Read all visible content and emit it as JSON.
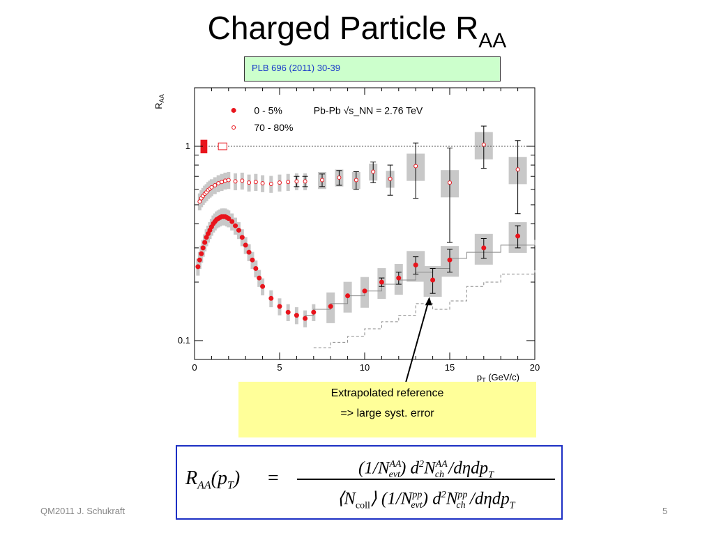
{
  "slide": {
    "title_main": "Charged Particle R",
    "title_sub": "AA",
    "reference": "PLB 696 (2011) 30-39",
    "note_line1": "Extrapolated reference",
    "note_line2": "=> large syst. error",
    "footer_left": "QM2011 J. Schukraft",
    "page_number": "5"
  },
  "formula": {
    "lhs": "R_AA(p_T)",
    "equals": "=",
    "numerator": "(1/N_evt^AA) d²N_ch^AA / dη dp_T",
    "denominator": "⟨N_coll⟩ (1/N_evt^pp) d²N_ch^pp / dη dp_T"
  },
  "colors": {
    "central": "#e8141c",
    "peripheral": "#e8141c",
    "syst_band": "#c8c8c8",
    "formula_border": "#1c2fc4",
    "ref_box": "#ccffcc",
    "note_box": "#ffff99"
  },
  "chart_data": {
    "type": "scatter",
    "ylabel": "R_AA",
    "xlabel": "p_T (GeV/c)",
    "legend_header": "Pb-Pb √s_NN = 2.76 TeV",
    "legend_position": "top-left",
    "xlim": [
      0,
      20
    ],
    "ylim": [
      0.08,
      2.0
    ],
    "y_scale": "log",
    "x_ticks": [
      "0",
      "5",
      "10",
      "15",
      "20"
    ],
    "y_ticks": [
      "0.1",
      "1"
    ],
    "reference_line": 1,
    "series": [
      {
        "name": "0 - 5%",
        "marker": "filled-circle",
        "x": [
          0.2,
          0.3,
          0.4,
          0.5,
          0.6,
          0.7,
          0.8,
          0.9,
          1.0,
          1.1,
          1.2,
          1.3,
          1.4,
          1.5,
          1.6,
          1.7,
          1.8,
          1.9,
          2.0,
          2.2,
          2.4,
          2.6,
          2.8,
          3.0,
          3.2,
          3.4,
          3.6,
          3.8,
          4.0,
          4.5,
          5.0,
          5.5,
          6.0,
          6.5,
          7.0,
          8.0,
          9.0,
          10.0,
          11.0,
          12.0,
          13.0,
          14.0,
          15.0,
          17.0,
          19.0
        ],
        "y": [
          0.24,
          0.26,
          0.28,
          0.3,
          0.32,
          0.34,
          0.355,
          0.37,
          0.385,
          0.4,
          0.41,
          0.42,
          0.425,
          0.43,
          0.435,
          0.435,
          0.435,
          0.43,
          0.425,
          0.41,
          0.39,
          0.37,
          0.34,
          0.31,
          0.285,
          0.26,
          0.235,
          0.21,
          0.19,
          0.165,
          0.15,
          0.14,
          0.135,
          0.13,
          0.14,
          0.15,
          0.17,
          0.18,
          0.2,
          0.21,
          0.245,
          0.205,
          0.26,
          0.3,
          0.345
        ],
        "err": [
          0,
          0,
          0,
          0,
          0,
          0,
          0,
          0,
          0,
          0,
          0,
          0,
          0,
          0,
          0,
          0,
          0,
          0,
          0,
          0,
          0,
          0,
          0,
          0,
          0,
          0,
          0,
          0,
          0,
          0,
          0,
          0,
          0,
          0,
          0,
          0,
          0,
          0,
          0.01,
          0.015,
          0.025,
          0.03,
          0.035,
          0.035,
          0.045
        ]
      },
      {
        "name": "70 - 80%",
        "marker": "open-circle",
        "x": [
          0.3,
          0.4,
          0.5,
          0.6,
          0.7,
          0.8,
          0.9,
          1.0,
          1.2,
          1.4,
          1.6,
          1.8,
          2.0,
          2.4,
          2.8,
          3.2,
          3.6,
          4.0,
          4.5,
          5.0,
          5.5,
          6.0,
          6.5,
          7.5,
          8.5,
          9.5,
          10.5,
          11.5,
          13.0,
          15.0,
          17.0,
          19.0
        ],
        "y": [
          0.52,
          0.54,
          0.555,
          0.57,
          0.58,
          0.595,
          0.605,
          0.615,
          0.63,
          0.645,
          0.655,
          0.665,
          0.67,
          0.66,
          0.665,
          0.65,
          0.655,
          0.645,
          0.64,
          0.65,
          0.655,
          0.66,
          0.66,
          0.67,
          0.69,
          0.67,
          0.74,
          0.68,
          0.79,
          0.65,
          1.02,
          0.76
        ],
        "err": [
          0,
          0,
          0,
          0,
          0,
          0,
          0,
          0,
          0,
          0,
          0,
          0,
          0,
          0,
          0,
          0,
          0,
          0,
          0,
          0,
          0,
          0.04,
          0.04,
          0.05,
          0.06,
          0.07,
          0.09,
          0.12,
          0.25,
          0.33,
          0.25,
          0.31
        ]
      }
    ]
  }
}
